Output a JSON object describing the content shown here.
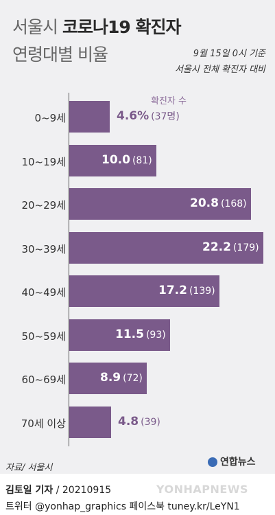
{
  "header": {
    "title_prefix": "서울시",
    "title_main": "코로나19 확진자",
    "title_line2": "연령대별 비율",
    "note_date": "9월 15일 0시 기준",
    "note_basis": "서울시 전체 확진자 대비"
  },
  "legend": {
    "count_label": "확진자 수"
  },
  "chart_data": {
    "type": "bar",
    "orientation": "horizontal",
    "categories": [
      "0~9세",
      "10~19세",
      "20~29세",
      "30~39세",
      "40~49세",
      "50~59세",
      "60~69세",
      "70세 이상"
    ],
    "series": [
      {
        "values": [
          4.6,
          10.0,
          20.8,
          22.2,
          17.2,
          11.5,
          8.9,
          4.8
        ]
      }
    ],
    "value_labels": [
      "4.6%",
      "10.0",
      "20.8",
      "22.2",
      "17.2",
      "11.5",
      "8.9",
      "4.8"
    ],
    "counts": [
      "(37명)",
      "(81)",
      "(168)",
      "(179)",
      "(139)",
      "(93)",
      "(72)",
      "(39)"
    ],
    "unit": "%",
    "xlim": [
      0,
      22.2
    ],
    "bar_color": "#7a5a8a",
    "inside_label_color": "#ffffff",
    "outside_label_color": "#7a5a8a"
  },
  "footer": {
    "source": "자료/ 서울시",
    "logo_text": "연합뉴스",
    "byline_name": "김토일 기자",
    "byline_date": " / 20210915",
    "social": "트위터 @yonhap_graphics  페이스북 tuney.kr/LeYN1",
    "watermark": "YONHAPNEWS"
  }
}
